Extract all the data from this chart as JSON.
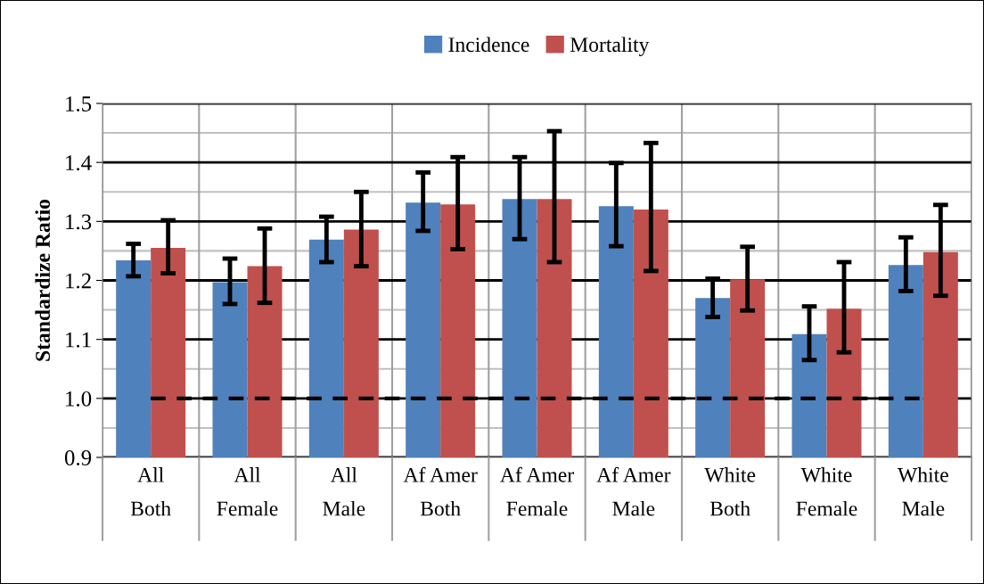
{
  "chart_data": {
    "type": "bar",
    "ylabel": "Standardize Ratio",
    "categories": [
      "All\nBoth",
      "All\nFemale",
      "All\nMale",
      "Af Amer\nBoth",
      "Af Amer\nFemale",
      "Af Amer\nMale",
      "White\nBoth",
      "White\nFemale",
      "White\nMale"
    ],
    "series": [
      {
        "name": "Incidence",
        "color": "#4f81bd",
        "values": [
          1.234,
          1.197,
          1.269,
          1.332,
          1.338,
          1.326,
          1.17,
          1.109,
          1.226
        ],
        "errors": [
          [
            1.207,
            1.262
          ],
          [
            1.16,
            1.237
          ],
          [
            1.231,
            1.308
          ],
          [
            1.284,
            1.383
          ],
          [
            1.27,
            1.409
          ],
          [
            1.258,
            1.399
          ],
          [
            1.138,
            1.203
          ],
          [
            1.065,
            1.156
          ],
          [
            1.182,
            1.273
          ]
        ]
      },
      {
        "name": "Mortality",
        "color": "#c0504d",
        "values": [
          1.255,
          1.224,
          1.286,
          1.329,
          1.338,
          1.32,
          1.202,
          1.152,
          1.248
        ],
        "errors": [
          [
            1.212,
            1.302
          ],
          [
            1.162,
            1.288
          ],
          [
            1.224,
            1.35
          ],
          [
            1.253,
            1.409
          ],
          [
            1.231,
            1.453
          ],
          [
            1.216,
            1.433
          ],
          [
            1.149,
            1.257
          ],
          [
            1.078,
            1.231
          ],
          [
            1.174,
            1.328
          ]
        ]
      }
    ],
    "ylim": [
      0.9,
      1.5
    ],
    "yticks": [
      {
        "value": 0.9,
        "label": "0.9"
      },
      {
        "value": 1.0,
        "label": "1.0"
      },
      {
        "value": 1.1,
        "label": "1.1"
      },
      {
        "value": 1.2,
        "label": "1.2"
      },
      {
        "value": 1.3,
        "label": "1.3"
      },
      {
        "value": 1.4,
        "label": "1.4"
      },
      {
        "value": 1.5,
        "label": "1.5"
      }
    ],
    "ref_lines": [
      {
        "axis": "y",
        "value": 1.0,
        "color": "#000000",
        "line_style": "dashed"
      }
    ],
    "grid": true,
    "legend": "top"
  }
}
